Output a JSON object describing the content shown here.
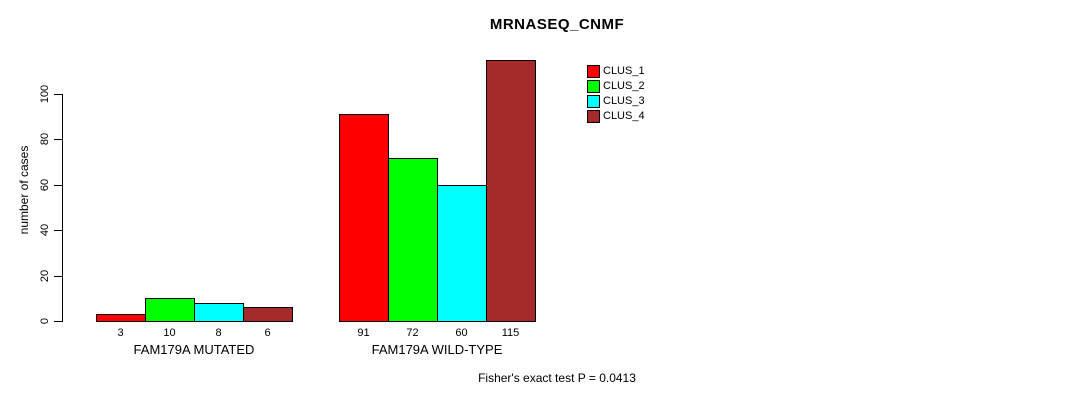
{
  "chart_data": {
    "type": "bar",
    "title": "MRNASEQ_CNMF",
    "xlabel": "",
    "ylabel": "number of cases",
    "footer": "Fisher's exact test P = 0.0413",
    "categories": [
      "FAM179A MUTATED",
      "FAM179A WILD-TYPE"
    ],
    "series": [
      {
        "name": "CLUS_1",
        "color": "#ff0000",
        "values": [
          3,
          91
        ]
      },
      {
        "name": "CLUS_2",
        "color": "#00ff00",
        "values": [
          10,
          72
        ]
      },
      {
        "name": "CLUS_3",
        "color": "#00ffff",
        "values": [
          8,
          60
        ]
      },
      {
        "name": "CLUS_4",
        "color": "#a52a2a",
        "values": [
          6,
          115
        ]
      }
    ],
    "bar_value_labels": [
      [
        "3",
        "10",
        "8",
        "6"
      ],
      [
        "91",
        "72",
        "60",
        "115"
      ]
    ],
    "yticks": [
      "0",
      "20",
      "40",
      "60",
      "80",
      "100"
    ],
    "ylim": [
      0,
      115
    ],
    "grid": false,
    "legend": {
      "position": "top-right",
      "entries": [
        "CLUS_1",
        "CLUS_2",
        "CLUS_3",
        "CLUS_4"
      ]
    },
    "colors": {
      "background": "#ffffff",
      "axis": "#000000",
      "text": "#000000"
    }
  }
}
